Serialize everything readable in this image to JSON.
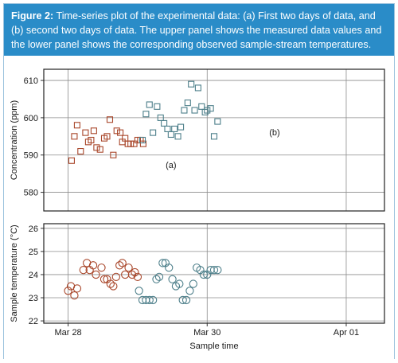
{
  "caption": {
    "label": "Figure 2:",
    "text": "Time-series plot of the experimental data: (a) First two days of data, and (b) second two days of data. The upper panel shows the measured data values and the lower panel shows the corresponding observed sample-stream temperatures."
  },
  "colors": {
    "caption_bg": "#2a8cc8",
    "series_a": "#a9472b",
    "series_b": "#4d7f8a",
    "grid": "#8c8c8c"
  },
  "chart_data": [
    {
      "type": "scatter",
      "ylabel": "Concentration (ppm)",
      "xlabel": "",
      "ylim": [
        575,
        613
      ],
      "yticks": [
        580,
        590,
        600,
        610
      ],
      "grid": true,
      "annotations": [
        {
          "text": "(a)",
          "x": 29.48,
          "y": 586.5
        },
        {
          "text": "(b)",
          "x": 30.97,
          "y": 595.3
        }
      ],
      "series": [
        {
          "marker": "square",
          "x": [
            28.05,
            28.09,
            28.13,
            28.18,
            28.25,
            28.29,
            28.33,
            28.37,
            28.41,
            28.46,
            28.52,
            28.56,
            28.6,
            28.65,
            28.7,
            28.75,
            28.78,
            28.82,
            28.86,
            28.9,
            28.95,
            29.0,
            29.04,
            29.08
          ],
          "y": [
            588.5,
            595,
            598,
            591,
            596,
            593.5,
            594,
            596.5,
            592,
            591.5,
            594.5,
            595,
            599.5,
            590,
            596.5,
            596,
            593.5,
            594.5,
            593,
            593,
            593,
            594,
            594,
            593
          ]
        },
        {
          "marker": "square",
          "x": [
            29.07,
            29.12,
            29.17,
            29.22,
            29.28,
            29.33,
            29.38,
            29.43,
            29.48,
            29.53,
            29.58,
            29.62,
            29.67,
            29.72,
            29.77,
            29.82,
            29.87,
            29.92,
            29.97
          ],
          "y": [
            594,
            601,
            603.5,
            596,
            603,
            600,
            598.5,
            597,
            595.5,
            597,
            595,
            597.5,
            602,
            604,
            609,
            602,
            608,
            603,
            601.5
          ]
        },
        {
          "marker": "square",
          "x": [
            30.0,
            30.05,
            30.1,
            30.15
          ],
          "y": [
            602,
            602.5,
            595,
            599
          ]
        }
      ]
    },
    {
      "type": "scatter",
      "ylabel": "Sample temperature (°C)",
      "xlabel": "Sample time",
      "ylim": [
        21.9,
        26.2
      ],
      "yticks": [
        22,
        23,
        24,
        25,
        26
      ],
      "xticks": [
        "Mar 28",
        "Mar 30",
        "Apr 01"
      ],
      "grid": true,
      "series": [
        {
          "marker": "circle",
          "x": [
            28.0,
            28.04,
            28.09,
            28.13,
            28.22,
            28.27,
            28.31,
            28.36,
            28.4,
            28.48,
            28.52,
            28.56,
            28.61,
            28.65,
            28.69,
            28.74,
            28.78,
            28.82,
            28.87,
            28.92,
            28.96,
            29.0
          ],
          "y": [
            23.3,
            23.5,
            23.1,
            23.4,
            24.2,
            24.5,
            24.2,
            24.4,
            24.0,
            24.3,
            23.8,
            23.8,
            23.6,
            23.5,
            23.9,
            24.4,
            24.5,
            24.0,
            24.3,
            24.0,
            24.1,
            23.9
          ]
        },
        {
          "marker": "circle",
          "x": [
            29.02,
            29.07,
            29.12,
            29.17,
            29.22,
            29.27,
            29.31,
            29.36,
            29.4,
            29.45,
            29.5,
            29.55,
            29.6,
            29.65,
            29.7,
            29.75,
            29.8,
            29.85,
            29.9,
            29.95,
            30.0,
            30.05,
            30.1,
            30.15
          ],
          "y": [
            23.3,
            22.9,
            22.9,
            22.9,
            22.9,
            23.8,
            23.9,
            24.5,
            24.5,
            24.3,
            23.8,
            23.5,
            23.6,
            22.9,
            22.9,
            23.3,
            23.6,
            24.3,
            24.2,
            24.0,
            24.0,
            24.2,
            24.2,
            24.2
          ]
        }
      ]
    }
  ],
  "xaxis": {
    "ticks": [
      {
        "label": "Mar 28",
        "x": 28
      },
      {
        "label": "Mar 30",
        "x": 30
      },
      {
        "label": "Apr 01",
        "x": 32
      }
    ]
  }
}
